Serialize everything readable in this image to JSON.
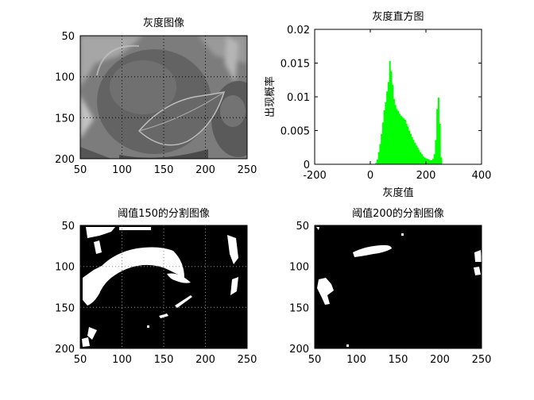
{
  "figure": {
    "panels": [
      {
        "title": "灰度图像",
        "image_kind": "grayscale-photo",
        "xlim": [
          50,
          250
        ],
        "ylim": [
          50,
          200
        ],
        "xticks": [
          "50",
          "100",
          "150",
          "200",
          "250"
        ],
        "yticks": [
          "50",
          "100",
          "150",
          "200"
        ],
        "grid": "dotted"
      },
      {
        "title": "阈值150的分割图像",
        "image_kind": "binary-threshold",
        "xlim": [
          50,
          250
        ],
        "ylim": [
          50,
          200
        ],
        "xticks": [
          "50",
          "100",
          "150",
          "200",
          "250"
        ],
        "yticks": [
          "50",
          "100",
          "150",
          "200"
        ],
        "grid": "dotted"
      },
      {
        "title": "阈值200的分割图像",
        "image_kind": "binary-threshold",
        "xlim": [
          50,
          250
        ],
        "ylim": [
          50,
          200
        ],
        "xticks": [
          "50",
          "100",
          "150",
          "200",
          "250"
        ],
        "yticks": [
          "50",
          "100",
          "150",
          "200"
        ],
        "grid": "none"
      }
    ]
  },
  "chart_data": {
    "type": "bar",
    "title": "灰度直方图",
    "xlabel": "灰度值",
    "ylabel": "出现概率",
    "xlim": [
      -200,
      400
    ],
    "ylim": [
      0,
      0.02
    ],
    "xticks": [
      "-200",
      "0",
      "200",
      "400"
    ],
    "yticks": [
      "0",
      "0.005",
      "0.01",
      "0.015",
      "0.02"
    ],
    "color": "#00ff00",
    "grid": "none",
    "x": [
      0,
      5,
      10,
      15,
      20,
      25,
      30,
      35,
      40,
      45,
      50,
      55,
      60,
      65,
      70,
      75,
      80,
      85,
      90,
      95,
      100,
      105,
      110,
      115,
      120,
      125,
      130,
      135,
      140,
      145,
      150,
      155,
      160,
      165,
      170,
      175,
      180,
      185,
      190,
      195,
      200,
      205,
      210,
      215,
      220,
      225,
      230,
      235,
      240,
      245,
      250,
      255
    ],
    "values": [
      0,
      0,
      0,
      0,
      0.0002,
      0.0007,
      0.0018,
      0.003,
      0.0045,
      0.0062,
      0.008,
      0.0092,
      0.0108,
      0.0122,
      0.0153,
      0.0138,
      0.0118,
      0.0097,
      0.0088,
      0.0082,
      0.0079,
      0.0075,
      0.0072,
      0.007,
      0.0068,
      0.0066,
      0.006,
      0.0056,
      0.005,
      0.0045,
      0.004,
      0.0036,
      0.0032,
      0.0028,
      0.0025,
      0.0021,
      0.0018,
      0.0015,
      0.0012,
      0.001,
      0.0009,
      0.0008,
      0.0007,
      0.0006,
      0.0006,
      0.0008,
      0.0015,
      0.0036,
      0.0082,
      0.0099,
      0.006,
      0.001
    ]
  }
}
